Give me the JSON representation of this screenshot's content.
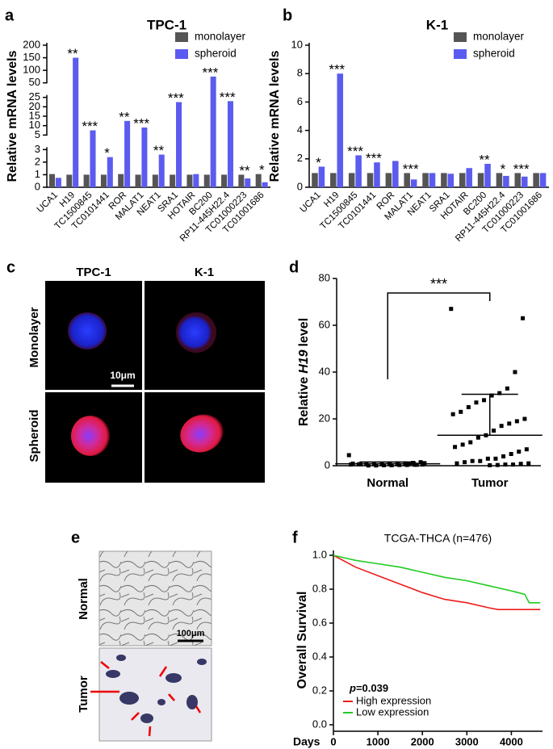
{
  "chart_data": [
    {
      "type": "bar",
      "panel_label": "a",
      "title": "TPC-1",
      "ylabel": "Relative mRNA levels",
      "categories": [
        "UCA1",
        "H19",
        "TC1500845",
        "TC0101441",
        "ROR",
        "MALAT1",
        "NEAT1",
        "SRA1",
        "HOTAIR",
        "BC200",
        "RP11-445H22.4",
        "TC01000223",
        "TC01001686"
      ],
      "series": [
        {
          "name": "monolayer",
          "color": "#555555",
          "values": [
            1.05,
            1.0,
            1.0,
            1.0,
            1.05,
            1.0,
            1.0,
            1.0,
            1.0,
            1.0,
            1.0,
            1.0,
            1.05
          ]
        },
        {
          "name": "spheroid",
          "color": "#5b5bf0",
          "values": [
            0.75,
            150,
            7.5,
            2.4,
            12.5,
            9,
            2.6,
            22.5,
            1.05,
            75,
            23,
            0.7,
            0.4
          ]
        }
      ],
      "ylim": [
        0,
        200
      ],
      "yticks": [
        0,
        1,
        2,
        3,
        5,
        10,
        15,
        20,
        25,
        50,
        100,
        150,
        200
      ],
      "axis_breaks": [
        [
          0,
          3
        ],
        [
          5,
          25
        ],
        [
          50,
          200
        ]
      ],
      "significance": [
        null,
        "**",
        "***",
        "*",
        "**",
        "***",
        "**",
        "***",
        null,
        "***",
        "***",
        "**",
        "*"
      ],
      "legend": "upper right"
    },
    {
      "type": "bar",
      "panel_label": "b",
      "title": "K-1",
      "ylabel": "Relative mRNA levels",
      "categories": [
        "UCA1",
        "H19",
        "TC1500845",
        "TC0101441",
        "ROR",
        "MALAT1",
        "NEAT1",
        "SRA1",
        "HOTAIR",
        "BC200",
        "RP11-445H22.4",
        "TC01000223",
        "TC01001686"
      ],
      "series": [
        {
          "name": "monolayer",
          "color": "#555555",
          "values": [
            1.0,
            1.0,
            1.0,
            1.0,
            1.0,
            1.0,
            1.0,
            1.0,
            1.0,
            1.0,
            1.0,
            1.0,
            1.0
          ]
        },
        {
          "name": "spheroid",
          "color": "#5b5bf0",
          "values": [
            1.45,
            8.0,
            2.25,
            1.75,
            1.85,
            0.55,
            1.0,
            0.95,
            1.35,
            1.65,
            0.8,
            0.75,
            1.0
          ]
        }
      ],
      "ylim": [
        0,
        10
      ],
      "yticks": [
        0,
        2,
        4,
        6,
        8,
        10
      ],
      "significance": [
        "*",
        "***",
        "***",
        "***",
        null,
        "***",
        null,
        null,
        null,
        "**",
        "*",
        "***",
        null
      ],
      "legend": "upper right"
    },
    {
      "type": "scatter",
      "panel_label": "d",
      "ylabel_parts": [
        "Relative",
        "H19",
        "level"
      ],
      "categories": [
        "Normal",
        "Tumor"
      ],
      "values": [
        [
          4.5,
          1.5,
          1.2,
          1.0,
          1.0,
          0.9,
          0.8,
          0.8,
          0.7,
          0.6,
          0.5,
          0.5,
          0.4,
          0.3,
          0.3,
          0.2,
          0.2,
          0.1,
          0.1,
          0.6,
          0.9,
          1.1,
          0.4,
          0.7
        ],
        [
          67,
          63,
          40,
          33,
          31,
          30,
          28,
          27,
          25,
          23,
          22,
          20,
          19,
          18,
          17,
          15,
          13,
          12,
          10,
          9,
          8,
          7,
          6,
          5,
          4,
          3,
          3,
          2,
          2,
          1.5,
          1,
          1,
          0.8,
          0.5,
          0.5,
          0.3,
          0.2
        ]
      ],
      "means": [
        0.8,
        13
      ],
      "sd": [
        0.8,
        17.5
      ],
      "ylim": [
        0,
        80
      ],
      "yticks": [
        0,
        20,
        40,
        60,
        80
      ],
      "significance": "***"
    },
    {
      "type": "line",
      "panel_label": "f",
      "title": "TCGA-THCA (n=476)",
      "ylabel": "Overall Survival",
      "xlabel": "Days",
      "series": [
        {
          "name": "High expression",
          "color": "#ee1c1c",
          "x": [
            0,
            500,
            1000,
            1500,
            2000,
            2500,
            3000,
            3500,
            3700,
            4650
          ],
          "values": [
            1.0,
            0.93,
            0.88,
            0.83,
            0.78,
            0.74,
            0.72,
            0.69,
            0.68,
            0.68
          ]
        },
        {
          "name": "Low expression",
          "color": "#22cc22",
          "x": [
            0,
            500,
            1000,
            1500,
            2000,
            2500,
            3000,
            3500,
            4000,
            4300,
            4400,
            4650
          ],
          "values": [
            1.0,
            0.97,
            0.95,
            0.93,
            0.9,
            0.87,
            0.85,
            0.82,
            0.79,
            0.77,
            0.72,
            0.72
          ]
        }
      ],
      "xlim": [
        0,
        4700
      ],
      "xticks": [
        0,
        1000,
        2000,
        3000,
        4000
      ],
      "ylim": [
        0,
        1
      ],
      "yticks": [
        {
          "value": 0,
          "label": "0.0"
        },
        0.2,
        0.4,
        0.6,
        0.8,
        {
          "value": 1,
          "label": "1.0"
        }
      ],
      "p_value_parts": [
        "p",
        "=0.039"
      ],
      "legend": "lower left"
    }
  ],
  "figure_panels": {
    "c": {
      "label": "c",
      "columns": [
        "TPC-1",
        "K-1"
      ],
      "rows": [
        "Monolayer",
        "Spheroid"
      ],
      "scale_bar": "10μm"
    },
    "e": {
      "label": "e",
      "rows": [
        "Normal",
        "Tumor"
      ],
      "scale_bar": "100μm"
    }
  }
}
